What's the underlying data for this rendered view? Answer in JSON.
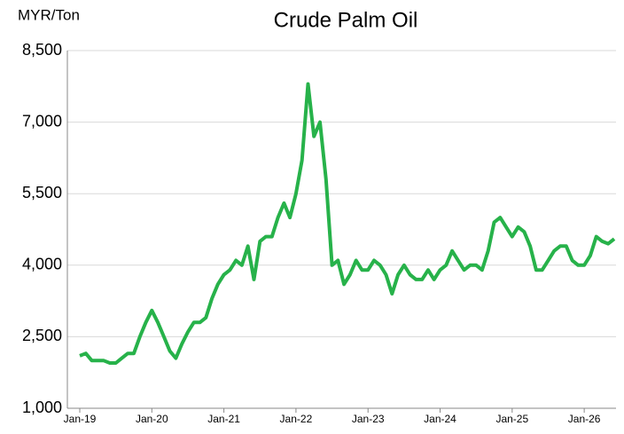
{
  "chart_data": {
    "type": "line",
    "title": "Crude Palm Oil",
    "y_label": "MYR/Ton",
    "x": [
      "Jan-19",
      "Feb-19",
      "Mar-19",
      "Apr-19",
      "May-19",
      "Jun-19",
      "Jul-19",
      "Aug-19",
      "Sep-19",
      "Oct-19",
      "Nov-19",
      "Dec-19",
      "Jan-20",
      "Feb-20",
      "Mar-20",
      "Apr-20",
      "May-20",
      "Jun-20",
      "Jul-20",
      "Aug-20",
      "Sep-20",
      "Oct-20",
      "Nov-20",
      "Dec-20",
      "Jan-21",
      "Feb-21",
      "Mar-21",
      "Apr-21",
      "May-21",
      "Jun-21",
      "Jul-21",
      "Aug-21",
      "Sep-21",
      "Oct-21",
      "Nov-21",
      "Dec-21",
      "Jan-22",
      "Feb-22",
      "Mar-22",
      "Apr-22",
      "May-22",
      "Jun-22",
      "Jul-22",
      "Aug-22",
      "Sep-22",
      "Oct-22",
      "Nov-22",
      "Dec-22",
      "Jan-23",
      "Feb-23",
      "Mar-23",
      "Apr-23",
      "May-23",
      "Jun-23",
      "Jul-23",
      "Aug-23",
      "Sep-23",
      "Oct-23",
      "Nov-23",
      "Dec-23",
      "Jan-24",
      "Feb-24",
      "Mar-24",
      "Apr-24",
      "May-24",
      "Jun-24",
      "Jul-24",
      "Aug-24",
      "Sep-24",
      "Oct-24",
      "Nov-24",
      "Dec-24",
      "Jan-25",
      "Feb-25",
      "Mar-25",
      "Apr-25",
      "May-25",
      "Jun-25",
      "Jul-25",
      "Aug-25",
      "Sep-25",
      "Oct-25",
      "Nov-25",
      "Dec-25",
      "Jan-26",
      "Feb-26",
      "Mar-26",
      "Apr-26",
      "May-26",
      "Jun-26"
    ],
    "series": [
      {
        "name": "Crude Palm Oil",
        "color": "#27b24a",
        "values": [
          2100,
          2150,
          2000,
          2000,
          2000,
          1950,
          1950,
          2050,
          2150,
          2150,
          2500,
          2800,
          3050,
          2800,
          2500,
          2200,
          2050,
          2350,
          2600,
          2800,
          2800,
          2900,
          3300,
          3600,
          3800,
          3900,
          4100,
          4000,
          4400,
          3700,
          4500,
          4600,
          4600,
          5000,
          5300,
          5000,
          5500,
          6200,
          7800,
          6700,
          7000,
          5800,
          4000,
          4100,
          3600,
          3800,
          4100,
          3900,
          3900,
          4100,
          4000,
          3800,
          3400,
          3800,
          4000,
          3800,
          3700,
          3700,
          3900,
          3700,
          3900,
          4000,
          4300,
          4100,
          3900,
          4000,
          4000,
          3900,
          4300,
          4900,
          5000,
          4800,
          4600,
          4800,
          4700,
          4400,
          3900,
          3900,
          4100,
          4300,
          4400,
          4400,
          4100,
          4000,
          4000,
          4200,
          4600,
          4500,
          4450,
          4550
        ]
      }
    ],
    "xticks": [
      "Jan-19",
      "Jan-20",
      "Jan-21",
      "Jan-22",
      "Jan-23",
      "Jan-24",
      "Jan-25",
      "Jan-26"
    ],
    "ylim": [
      1000,
      8500
    ],
    "yticks": [
      {
        "value": 1000,
        "label": "1,000"
      },
      {
        "value": 2500,
        "label": "2,500"
      },
      {
        "value": 4000,
        "label": "4,000"
      },
      {
        "value": 5500,
        "label": "5,500"
      },
      {
        "value": 7000,
        "label": "7,000"
      },
      {
        "value": 8500,
        "label": "8,500"
      }
    ],
    "grid": true
  }
}
